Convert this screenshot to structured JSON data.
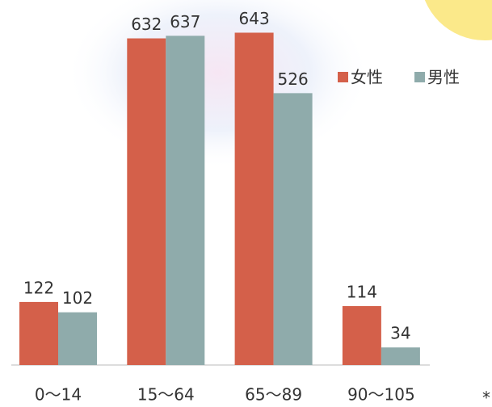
{
  "chart_data": {
    "type": "bar",
    "categories": [
      "0〜14",
      "15〜64",
      "65〜89",
      "90〜105"
    ],
    "series": [
      {
        "name": "女性",
        "color": "#d4604a",
        "values": [
          122,
          632,
          643,
          114
        ]
      },
      {
        "name": "男性",
        "color": "#8fabab",
        "values": [
          102,
          637,
          526,
          34
        ]
      }
    ],
    "ylim": [
      0,
      700
    ],
    "annotation": "*"
  }
}
